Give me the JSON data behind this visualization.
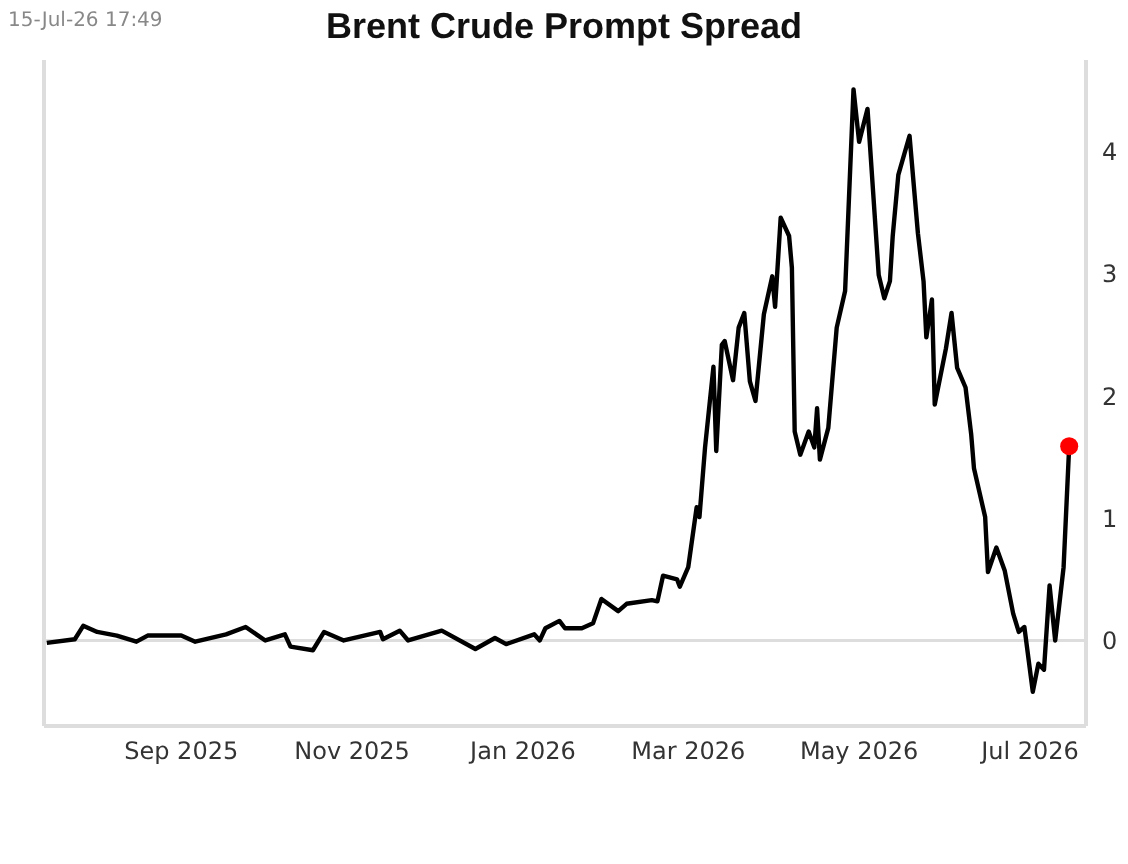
{
  "chart_data": {
    "type": "line",
    "title": "Brent Crude Prompt Spread",
    "annotations": [
      "15-Jul-26 17:49"
    ],
    "xlim": [
      "2025-07-14",
      "2026-07-21"
    ],
    "xticks": [
      {
        "value": "2025-09-01",
        "label": "Sep 2025"
      },
      {
        "value": "2025-11-01",
        "label": "Nov 2025"
      },
      {
        "value": "2026-01-01",
        "label": "Jan 2026"
      },
      {
        "value": "2026-03-01",
        "label": "Mar 2026"
      },
      {
        "value": "2026-05-01",
        "label": "May 2026"
      },
      {
        "value": "2026-07-01",
        "label": "Jul 2026"
      }
    ],
    "ylim": [
      -0.7,
      4.75
    ],
    "yticks": [
      0,
      1,
      2,
      3,
      4
    ],
    "grid": false,
    "legend": false,
    "marker": "none",
    "line_style": "solid",
    "ref_lines": [
      {
        "axis": "y",
        "value": 0,
        "color": "#dddddd"
      }
    ],
    "series": [
      {
        "color": "#000000",
        "x": [
          "2025-07-15",
          "2025-07-25",
          "2025-07-28",
          "2025-08-02",
          "2025-08-09",
          "2025-08-16",
          "2025-08-20",
          "2025-09-01",
          "2025-09-06",
          "2025-09-17",
          "2025-09-24",
          "2025-10-01",
          "2025-10-08",
          "2025-10-10",
          "2025-10-18",
          "2025-10-22",
          "2025-10-29",
          "2025-11-11",
          "2025-11-12",
          "2025-11-18",
          "2025-11-21",
          "2025-12-03",
          "2025-12-15",
          "2025-12-22",
          "2025-12-26",
          "2026-01-05",
          "2026-01-07",
          "2026-01-09",
          "2026-01-14",
          "2026-01-16",
          "2026-01-22",
          "2026-01-26",
          "2026-01-29",
          "2026-02-04",
          "2026-02-07",
          "2026-02-16",
          "2026-02-18",
          "2026-02-20",
          "2026-02-25",
          "2026-02-26",
          "2026-03-01",
          "2026-03-04",
          "2026-03-05",
          "2026-03-07",
          "2026-03-10",
          "2026-03-11",
          "2026-03-13",
          "2026-03-14",
          "2026-03-17",
          "2026-03-19",
          "2026-03-21",
          "2026-03-23",
          "2026-03-25",
          "2026-03-28",
          "2026-03-31",
          "2026-04-01",
          "2026-04-03",
          "2026-04-06",
          "2026-04-07",
          "2026-04-08",
          "2026-04-10",
          "2026-04-13",
          "2026-04-15",
          "2026-04-16",
          "2026-04-17",
          "2026-04-20",
          "2026-04-23",
          "2026-04-26",
          "2026-04-29",
          "2026-05-01",
          "2026-05-04",
          "2026-05-08",
          "2026-05-10",
          "2026-05-12",
          "2026-05-13",
          "2026-05-15",
          "2026-05-19",
          "2026-05-22",
          "2026-05-24",
          "2026-05-25",
          "2026-05-27",
          "2026-05-28",
          "2026-06-01",
          "2026-06-03",
          "2026-06-05",
          "2026-06-08",
          "2026-06-10",
          "2026-06-11",
          "2026-06-15",
          "2026-06-16",
          "2026-06-19",
          "2026-06-22",
          "2026-06-25",
          "2026-06-27",
          "2026-06-29",
          "2026-07-02",
          "2026-07-04",
          "2026-07-06",
          "2026-07-08",
          "2026-07-10",
          "2026-07-13",
          "2026-07-15"
        ],
        "values": [
          -0.02,
          0.01,
          0.12,
          0.07,
          0.04,
          -0.01,
          0.04,
          0.04,
          -0.01,
          0.05,
          0.11,
          0.0,
          0.05,
          -0.05,
          -0.08,
          0.07,
          0.0,
          0.07,
          0.01,
          0.08,
          0.0,
          0.08,
          -0.07,
          0.02,
          -0.03,
          0.05,
          0.0,
          0.1,
          0.16,
          0.1,
          0.1,
          0.14,
          0.34,
          0.24,
          0.3,
          0.33,
          0.32,
          0.53,
          0.5,
          0.44,
          0.6,
          1.09,
          1.01,
          1.58,
          2.24,
          1.55,
          2.42,
          2.45,
          2.13,
          2.56,
          2.68,
          2.12,
          1.96,
          2.67,
          2.98,
          2.73,
          3.46,
          3.31,
          3.05,
          1.71,
          1.52,
          1.71,
          1.58,
          1.9,
          1.48,
          1.74,
          2.56,
          2.86,
          4.51,
          4.08,
          4.35,
          2.99,
          2.8,
          2.94,
          3.31,
          3.81,
          4.13,
          3.33,
          2.94,
          2.48,
          2.79,
          1.93,
          2.39,
          2.68,
          2.23,
          2.07,
          1.69,
          1.41,
          1.01,
          0.56,
          0.76,
          0.57,
          0.22,
          0.07,
          0.11,
          -0.42,
          -0.19,
          -0.24,
          0.45,
          0.0,
          0.6,
          1.59
        ]
      },
      {
        "type": "scatter",
        "marker": "circle",
        "color": "#ff0000",
        "x": [
          "2026-07-15"
        ],
        "values": [
          1.59
        ]
      }
    ]
  }
}
